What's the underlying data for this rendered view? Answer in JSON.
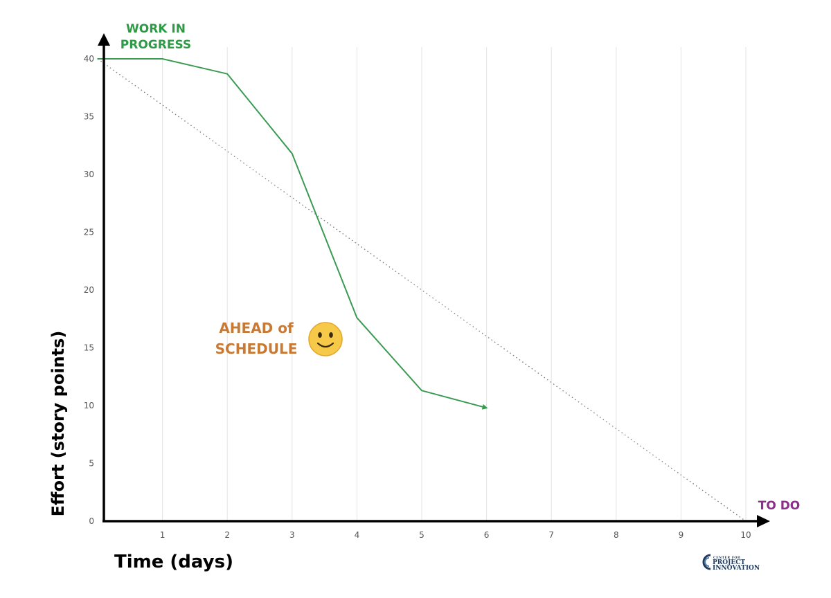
{
  "chart_data": {
    "type": "line",
    "xlabel": "Time (days)",
    "ylabel": "Effort (story points)",
    "xlim": [
      0,
      10
    ],
    "ylim": [
      0,
      40
    ],
    "x_ticks": [
      "1",
      "2",
      "3",
      "4",
      "5",
      "6",
      "7",
      "8",
      "9",
      "10"
    ],
    "y_ticks": [
      "0",
      "5",
      "10",
      "15",
      "20",
      "25",
      "30",
      "35",
      "40"
    ],
    "grid": "vertical",
    "series": [
      {
        "name": "WORK IN PROGRESS",
        "color": "#3a9a52",
        "style": "solid",
        "x": [
          0,
          1,
          2,
          3,
          4,
          5,
          6
        ],
        "y": [
          40,
          40,
          38.7,
          31.8,
          17.6,
          11.3,
          9.8
        ]
      },
      {
        "name": "TO DO",
        "color": "#777777",
        "style": "dotted",
        "x": [
          0,
          10
        ],
        "y": [
          40,
          0
        ]
      }
    ],
    "annotations": [
      {
        "text_line1": "AHEAD of",
        "text_line2": "SCHEDULE",
        "icon": "smiley-face-icon"
      }
    ]
  },
  "logo": {
    "line1": "CENTER FOR",
    "line2": "PROJECT",
    "line3": "INNOVATION",
    "icon": "globe-swoosh-icon",
    "color": "#1f3b5e"
  }
}
